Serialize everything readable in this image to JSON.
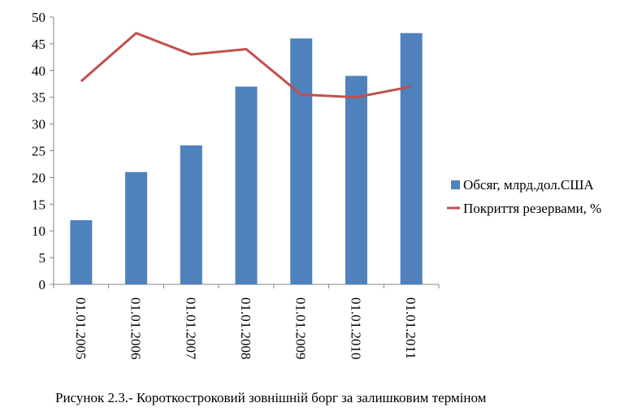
{
  "caption": "Рисунок 2.3.- Короткостроковий зовнішній  борг за залишковим терміном",
  "chart_data": {
    "type": "bar",
    "categories": [
      "01.01.2005",
      "01.01.2006",
      "01.01.2007",
      "01.01.2008",
      "01.01.2009",
      "01.01.2010",
      "01.01.2011"
    ],
    "series": [
      {
        "name": "Обсяг, млрд.дол.США",
        "type": "bar",
        "color": "#4F81BD",
        "values": [
          12,
          21,
          26,
          37,
          46,
          39,
          47
        ]
      },
      {
        "name": "Покриття резервами, %",
        "type": "line",
        "color": "#C0504D",
        "values": [
          38,
          47,
          43,
          44,
          35.5,
          35,
          37
        ]
      }
    ],
    "ylim": [
      0,
      50
    ],
    "yticks": [
      "0",
      "5",
      "10",
      "15",
      "20",
      "25",
      "30",
      "35",
      "40",
      "45",
      "50"
    ],
    "grid": false,
    "legend_position": "right",
    "xlabel": "",
    "ylabel": ""
  }
}
